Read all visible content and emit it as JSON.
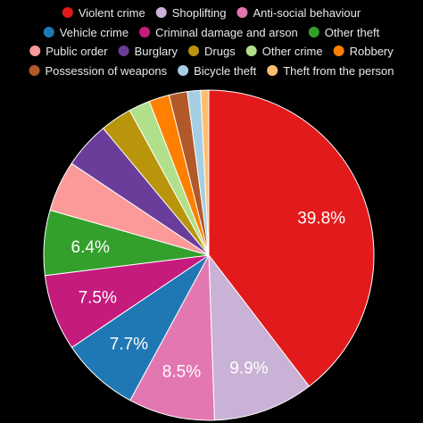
{
  "chart_data": {
    "type": "pie",
    "title": "",
    "legend_position": "top",
    "slices": [
      {
        "name": "Violent crime",
        "value": 39.8,
        "color": "#e31a1c",
        "label": "39.8%"
      },
      {
        "name": "Shoplifting",
        "value": 9.9,
        "color": "#cab2d6",
        "label": "9.9%"
      },
      {
        "name": "Anti-social behaviour",
        "value": 8.5,
        "color": "#e377b2",
        "label": "8.5%"
      },
      {
        "name": "Vehicle crime",
        "value": 7.7,
        "color": "#1f78b4",
        "label": "7.7%"
      },
      {
        "name": "Criminal damage and arson",
        "value": 7.5,
        "color": "#c51b7d",
        "label": "7.5%"
      },
      {
        "name": "Other theft",
        "value": 6.4,
        "color": "#33a02c",
        "label": "6.4%"
      },
      {
        "name": "Public order",
        "value": 5.0,
        "color": "#fb9a99",
        "label": ""
      },
      {
        "name": "Burglary",
        "value": 4.6,
        "color": "#6a3d9a",
        "label": ""
      },
      {
        "name": "Drugs",
        "value": 3.1,
        "color": "#b8950b",
        "label": ""
      },
      {
        "name": "Other crime",
        "value": 2.1,
        "color": "#b2df8a",
        "label": ""
      },
      {
        "name": "Robbery",
        "value": 2.0,
        "color": "#ff7f00",
        "label": ""
      },
      {
        "name": "Possession of weapons",
        "value": 1.8,
        "color": "#b15928",
        "label": ""
      },
      {
        "name": "Bicycle theft",
        "value": 1.3,
        "color": "#a6cee3",
        "label": ""
      },
      {
        "name": "Theft from the person",
        "value": 0.8,
        "color": "#fdbf6f",
        "label": ""
      }
    ]
  }
}
